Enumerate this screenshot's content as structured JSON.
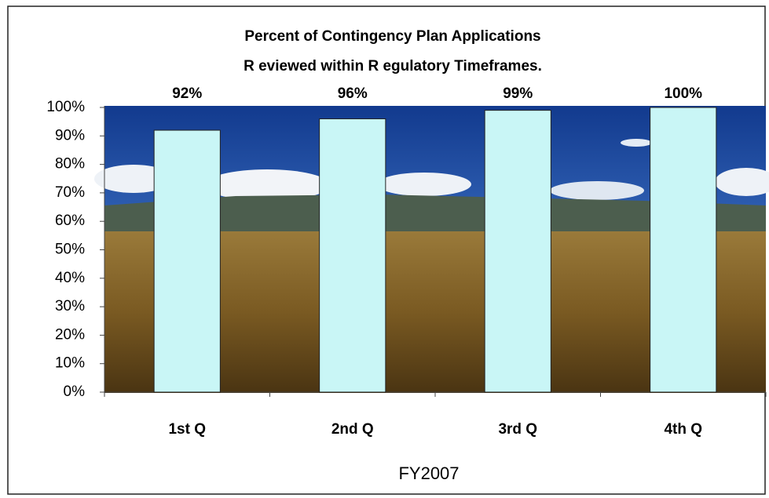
{
  "chart_data": {
    "type": "bar",
    "title": [
      "Percent of Contingency Plan Applications",
      "R eviewed within R egulatory Timeframes."
    ],
    "categories": [
      "1st Q",
      "2nd Q",
      "3rd Q",
      "4th Q"
    ],
    "values": [
      92,
      96,
      99,
      100
    ],
    "value_labels": [
      "92%",
      "96%",
      "99%",
      "100%"
    ],
    "color": "#c9f6f6",
    "x_label": "FY2007",
    "ylim": [
      0,
      100
    ],
    "yticks": [
      {
        "value": 0,
        "label": "0%"
      },
      {
        "value": 10,
        "label": "10%"
      },
      {
        "value": 20,
        "label": "20%"
      },
      {
        "value": 30,
        "label": "30%"
      },
      {
        "value": 40,
        "label": "40%"
      },
      {
        "value": 50,
        "label": "50%"
      },
      {
        "value": 60,
        "label": "60%"
      },
      {
        "value": 70,
        "label": "70%"
      },
      {
        "value": 80,
        "label": "80%"
      },
      {
        "value": 90,
        "label": "90%"
      },
      {
        "value": 100,
        "label": "100%"
      }
    ]
  }
}
